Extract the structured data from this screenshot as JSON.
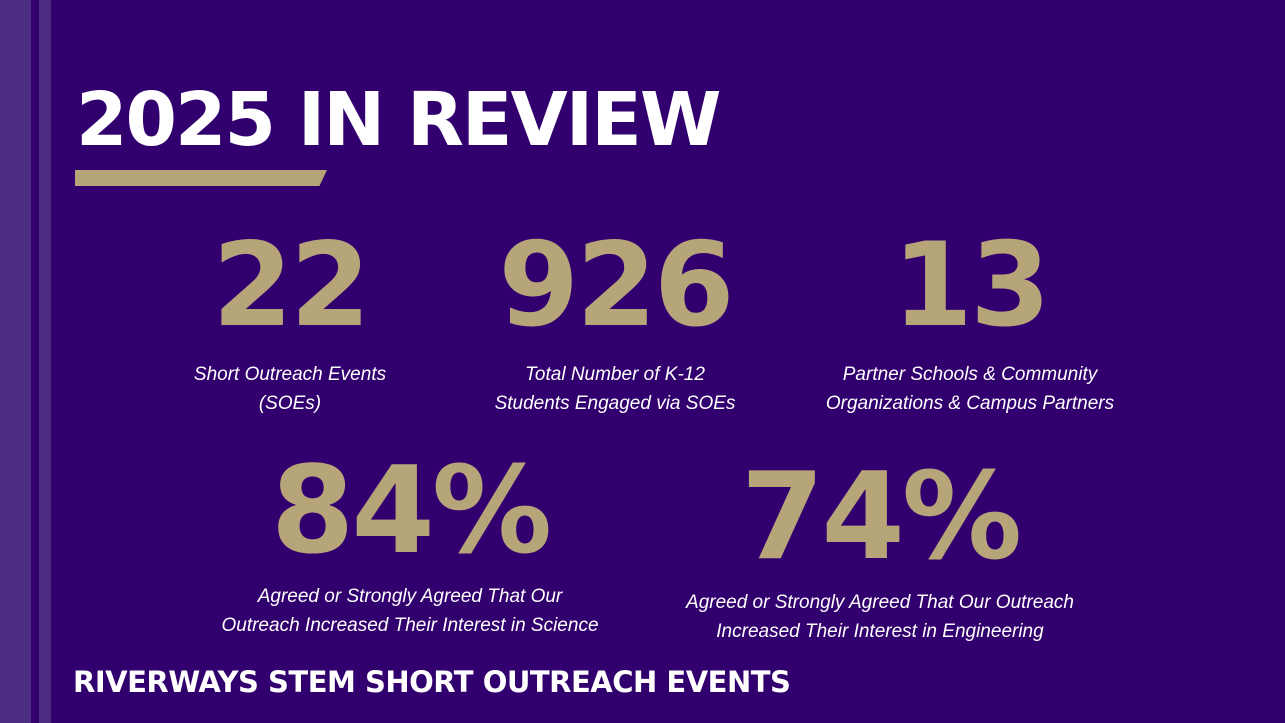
{
  "title": "2025 IN REVIEW",
  "colors": {
    "background": "#32006e",
    "stripe": "#4b2e83",
    "gold": "#b7a57a",
    "text": "#ffffff"
  },
  "stats": [
    {
      "value": "22",
      "label_lines": [
        "Short Outreach Events",
        "(SOEs)"
      ]
    },
    {
      "value": "926",
      "label_lines": [
        "Total Number of K-12",
        "Students Engaged via SOEs"
      ]
    },
    {
      "value": "13",
      "label_lines": [
        "Partner Schools & Community",
        "Organizations & Campus Partners"
      ]
    },
    {
      "value": "84%",
      "label_lines": [
        "Agreed or Strongly Agreed That Our",
        "Outreach Increased Their Interest in Science"
      ]
    },
    {
      "value": "74%",
      "label_lines": [
        "Agreed or Strongly Agreed That Our Outreach",
        "Increased Their Interest in Engineering"
      ]
    }
  ],
  "footer": "RIVERWAYS STEM SHORT OUTREACH EVENTS"
}
